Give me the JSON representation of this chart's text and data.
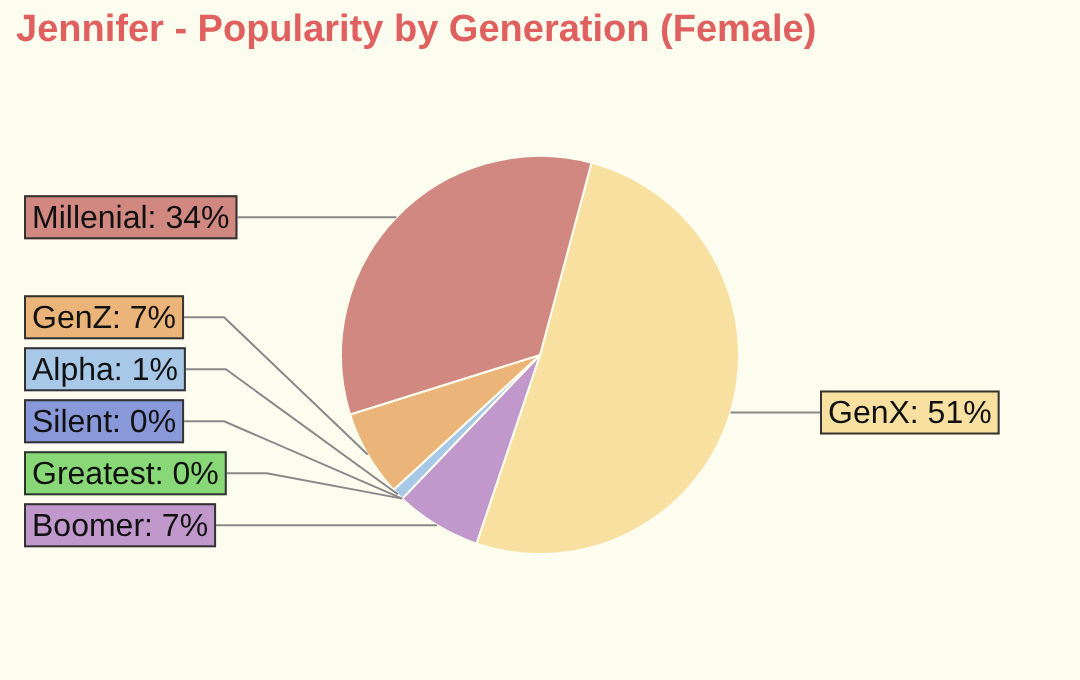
{
  "chart_data": {
    "type": "pie",
    "title": "Jennifer - Popularity by Generation (Female)",
    "categories": [
      "GenX",
      "Boomer",
      "Silent",
      "Greatest",
      "Alpha",
      "GenZ",
      "Millenial"
    ],
    "values": [
      51,
      7,
      0,
      0,
      1,
      7,
      34
    ],
    "colors": [
      "#f7e0a0",
      "#c098cc",
      "#8898d8",
      "#88d878",
      "#a8c8e8",
      "#ebb57a",
      "#d08880"
    ],
    "value_labels": [
      "51%",
      "7%",
      "0%",
      "0%",
      "1%",
      "7%",
      "34%"
    ]
  }
}
